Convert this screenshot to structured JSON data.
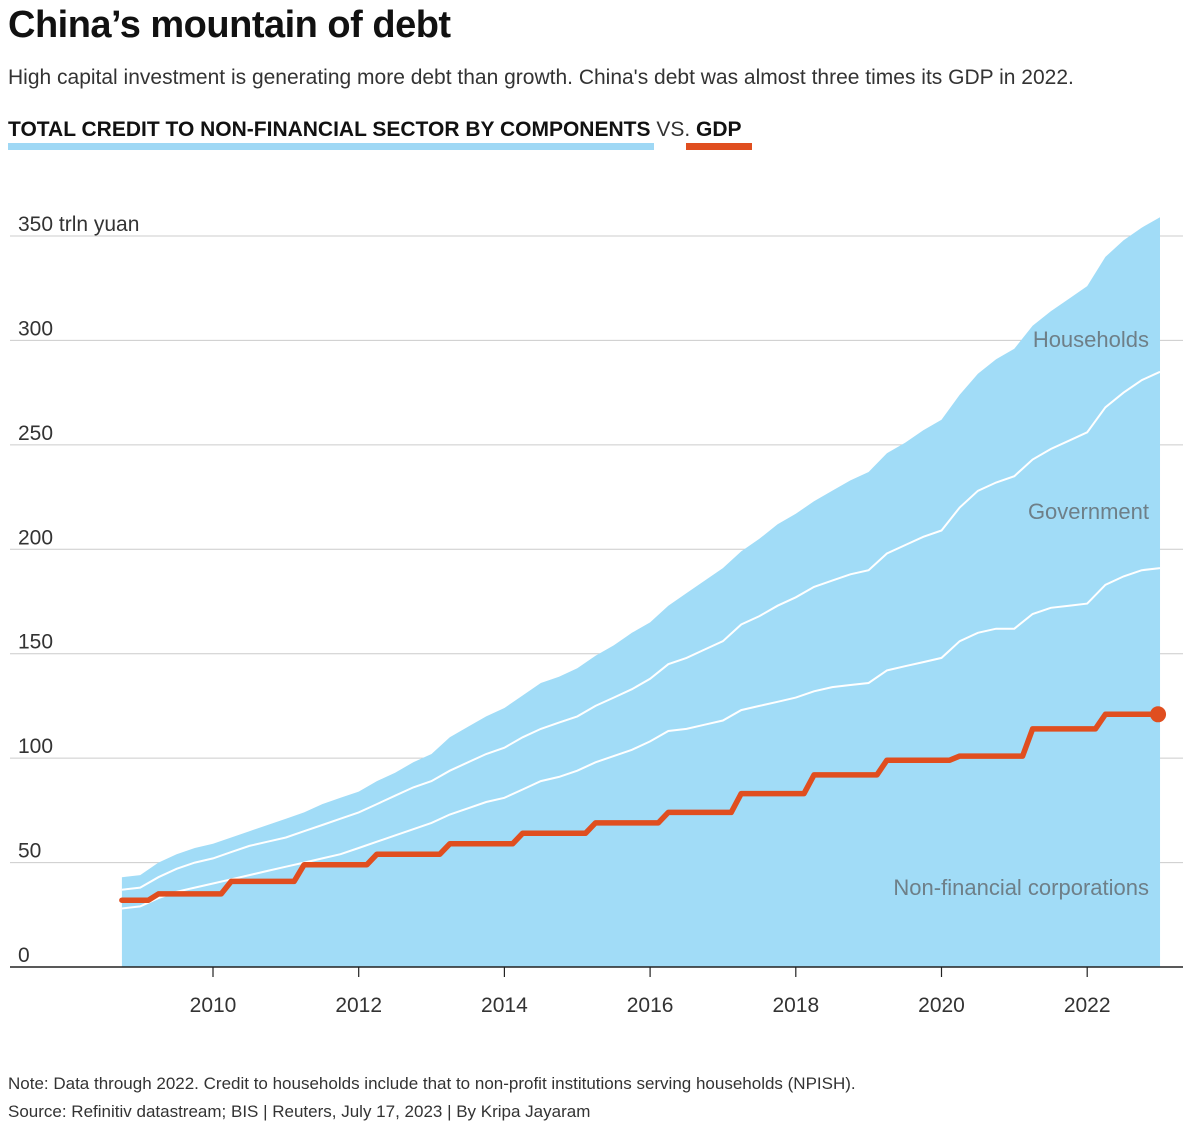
{
  "header": {
    "title": "China’s mountain of debt",
    "subtitle": "High capital investment is generating more debt than growth. China's debt was almost three times its GDP in 2022."
  },
  "legend": {
    "total_label": "TOTAL CREDIT TO NON-FINANCIAL SECTOR BY COMPONENTS",
    "vs_label": "VS.",
    "gdp_label": "GDP"
  },
  "footer": {
    "note": "Note: Data through 2022. Credit to households include that to non-profit institutions serving households (NPISH).",
    "source": "Source: Refinitiv datastream; BIS | Reuters, July 17, 2023 | By Kripa Jayaram"
  },
  "colors": {
    "area": "#a1dcf7",
    "separator": "#ffffff",
    "gdp": "#e04e1f",
    "grid": "#cccccc",
    "area_label": "#6e7f88"
  },
  "chart_data": {
    "type": "area",
    "unit_label": "350 trln yuan",
    "ylim": [
      0,
      350
    ],
    "y_ticks": [
      0,
      50,
      100,
      150,
      200,
      250,
      300,
      350
    ],
    "y_tick_labels": [
      "0",
      "50",
      "100",
      "150",
      "200",
      "250",
      "300",
      "350 trln yuan"
    ],
    "x_ticks": [
      2010,
      2012,
      2014,
      2016,
      2018,
      2020,
      2022
    ],
    "x_tick_labels": [
      "2010",
      "2012",
      "2014",
      "2016",
      "2018",
      "2020",
      "2022"
    ],
    "grid": true,
    "x": [
      2008.75,
      2009.0,
      2009.25,
      2009.5,
      2009.75,
      2010.0,
      2010.25,
      2010.5,
      2010.75,
      2011.0,
      2011.25,
      2011.5,
      2011.75,
      2012.0,
      2012.25,
      2012.5,
      2012.75,
      2013.0,
      2013.25,
      2013.5,
      2013.75,
      2014.0,
      2014.25,
      2014.5,
      2014.75,
      2015.0,
      2015.25,
      2015.5,
      2015.75,
      2016.0,
      2016.25,
      2016.5,
      2016.75,
      2017.0,
      2017.25,
      2017.5,
      2017.75,
      2018.0,
      2018.25,
      2018.5,
      2018.75,
      2019.0,
      2019.25,
      2019.5,
      2019.75,
      2020.0,
      2020.25,
      2020.5,
      2020.75,
      2021.0,
      2021.25,
      2021.5,
      2021.75,
      2022.0,
      2022.25,
      2022.5,
      2022.75,
      2023.0
    ],
    "series": [
      {
        "name": "Non-financial corporations",
        "values": [
          28,
          29,
          33,
          36,
          38,
          40,
          42,
          44,
          46,
          48,
          50,
          52,
          54,
          57,
          60,
          63,
          66,
          69,
          73,
          76,
          79,
          81,
          85,
          89,
          91,
          94,
          98,
          101,
          104,
          108,
          113,
          114,
          116,
          118,
          123,
          125,
          127,
          129,
          132,
          134,
          135,
          136,
          142,
          144,
          146,
          148,
          156,
          160,
          162,
          162,
          169,
          172,
          173,
          174,
          183,
          187,
          190,
          191
        ]
      },
      {
        "name": "Government",
        "values": [
          37,
          38,
          43,
          47,
          50,
          52,
          55,
          58,
          60,
          62,
          65,
          68,
          71,
          74,
          78,
          82,
          86,
          89,
          94,
          98,
          102,
          105,
          110,
          114,
          117,
          120,
          125,
          129,
          133,
          138,
          145,
          148,
          152,
          156,
          164,
          168,
          173,
          177,
          182,
          185,
          188,
          190,
          198,
          202,
          206,
          209,
          220,
          228,
          232,
          235,
          243,
          248,
          252,
          256,
          268,
          275,
          281,
          285
        ]
      },
      {
        "name": "Households",
        "values": [
          43,
          44,
          50,
          54,
          57,
          59,
          62,
          65,
          68,
          71,
          74,
          78,
          81,
          84,
          89,
          93,
          98,
          102,
          110,
          115,
          120,
          124,
          130,
          136,
          139,
          143,
          149,
          154,
          160,
          165,
          173,
          179,
          185,
          191,
          199,
          205,
          212,
          217,
          223,
          228,
          233,
          237,
          246,
          251,
          257,
          262,
          274,
          284,
          291,
          296,
          307,
          314,
          320,
          326,
          340,
          348,
          354,
          359
        ]
      }
    ],
    "series_labels": [
      "Households",
      "Government",
      "Non-financial corporations"
    ],
    "gdp": {
      "name": "GDP",
      "x": [
        2008.75,
        2009.0,
        2009.25,
        2009.5,
        2009.75,
        2010.0,
        2010.25,
        2010.5,
        2010.75,
        2011.0,
        2011.25,
        2011.5,
        2011.75,
        2012.0,
        2012.25,
        2012.5,
        2012.75,
        2013.0,
        2013.25,
        2013.5,
        2013.75,
        2014.0,
        2014.25,
        2014.5,
        2014.75,
        2015.0,
        2015.25,
        2015.5,
        2015.75,
        2016.0,
        2016.25,
        2016.5,
        2016.75,
        2017.0,
        2017.25,
        2017.5,
        2017.75,
        2018.0,
        2018.25,
        2018.5,
        2018.75,
        2019.0,
        2019.25,
        2019.5,
        2019.75,
        2020.0,
        2020.25,
        2020.5,
        2020.75,
        2021.0,
        2021.25,
        2021.5,
        2021.75,
        2022.0,
        2022.25,
        2022.5,
        2022.75,
        2023.0
      ],
      "values": [
        32,
        32,
        35,
        35,
        35,
        35,
        41,
        41,
        41,
        41,
        49,
        49,
        49,
        49,
        54,
        54,
        54,
        54,
        59,
        59,
        59,
        59,
        64,
        64,
        64,
        64,
        69,
        69,
        69,
        69,
        74,
        74,
        74,
        74,
        83,
        83,
        83,
        83,
        92,
        92,
        92,
        92,
        99,
        99,
        99,
        99,
        101,
        101,
        101,
        101,
        114,
        114,
        114,
        114,
        121,
        121,
        121,
        121
      ]
    }
  }
}
